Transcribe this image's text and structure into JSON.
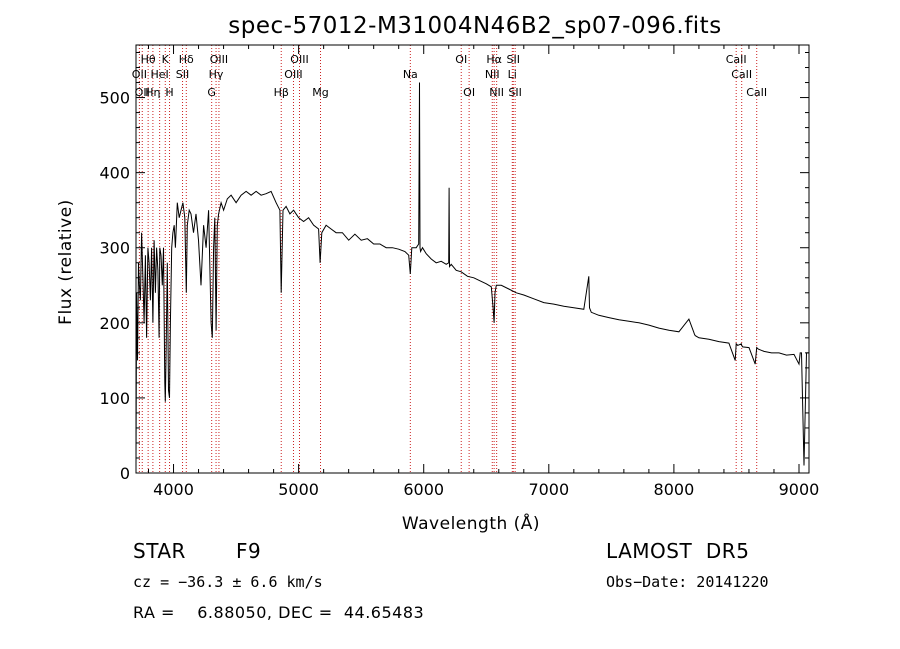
{
  "chart_data": {
    "type": "line",
    "title": "spec-57012-M31004N46B2_sp07-096.fits",
    "xlabel": "Wavelength (Å)",
    "ylabel": "Flux (relative)",
    "xlim": [
      3700,
      9080
    ],
    "ylim": [
      0,
      570
    ],
    "xticks": [
      4000,
      5000,
      6000,
      7000,
      8000,
      9000
    ],
    "yticks": [
      0,
      100,
      200,
      300,
      400,
      500
    ],
    "xtick_labels": [
      "4000",
      "5000",
      "6000",
      "7000",
      "8000",
      "9000"
    ],
    "ytick_labels": [
      "0",
      "100",
      "200",
      "300",
      "400",
      "500"
    ],
    "grid": false,
    "line_color": "#000000",
    "marker_color": "#cc2222",
    "series": [
      {
        "x": [
          3700,
          3705,
          3712,
          3720,
          3727,
          3735,
          3745,
          3755,
          3765,
          3775,
          3785,
          3795,
          3805,
          3815,
          3825,
          3835,
          3845,
          3855,
          3865,
          3875,
          3885,
          3890,
          3900,
          3910,
          3920,
          3930,
          3934,
          3940,
          3950,
          3960,
          3968,
          3975,
          3985,
          3995,
          4005,
          4015,
          4030,
          4045,
          4060,
          4075,
          4090,
          4102,
          4110,
          4125,
          4140,
          4160,
          4180,
          4200,
          4220,
          4240,
          4260,
          4280,
          4300,
          4310,
          4320,
          4330,
          4340,
          4350,
          4360,
          4380,
          4400,
          4430,
          4460,
          4500,
          4540,
          4580,
          4620,
          4660,
          4700,
          4740,
          4780,
          4820,
          4850,
          4861,
          4875,
          4900,
          4930,
          4960,
          5000,
          5040,
          5080,
          5120,
          5160,
          5172,
          5185,
          5220,
          5260,
          5300,
          5350,
          5400,
          5450,
          5500,
          5550,
          5600,
          5650,
          5700,
          5750,
          5800,
          5850,
          5880,
          5893,
          5905,
          5940,
          5960,
          5966,
          5970,
          5975,
          5990,
          6020,
          6060,
          6100,
          6140,
          6180,
          6200,
          6203,
          6206,
          6220,
          6260,
          6300,
          6350,
          6400,
          6450,
          6500,
          6540,
          6555,
          6563,
          6570,
          6580,
          6620,
          6680,
          6740,
          6800,
          6880,
          6960,
          7040,
          7120,
          7200,
          7280,
          7320,
          7325,
          7330,
          7340,
          7400,
          7480,
          7560,
          7640,
          7720,
          7800,
          7880,
          7960,
          8040,
          8120,
          8160,
          8164,
          8170,
          8200,
          8280,
          8360,
          8440,
          8490,
          8498,
          8510,
          8540,
          8542,
          8550,
          8600,
          8650,
          8662,
          8675,
          8720,
          8780,
          8840,
          8900,
          8960,
          9000,
          9010,
          9020,
          9040,
          9060,
          9070,
          9080
        ],
        "y": [
          10,
          240,
          150,
          280,
          250,
          230,
          320,
          260,
          200,
          290,
          180,
          300,
          280,
          230,
          300,
          200,
          310,
          240,
          300,
          270,
          180,
          300,
          290,
          250,
          300,
          120,
          95,
          150,
          280,
          110,
          100,
          200,
          300,
          320,
          330,
          300,
          360,
          340,
          350,
          360,
          340,
          240,
          330,
          350,
          345,
          320,
          345,
          310,
          250,
          330,
          300,
          350,
          200,
          180,
          300,
          340,
          190,
          330,
          345,
          360,
          350,
          365,
          370,
          360,
          370,
          375,
          370,
          375,
          370,
          372,
          375,
          360,
          350,
          240,
          350,
          355,
          345,
          350,
          340,
          335,
          340,
          330,
          325,
          280,
          320,
          330,
          325,
          320,
          320,
          310,
          318,
          310,
          312,
          305,
          305,
          300,
          300,
          298,
          295,
          290,
          265,
          300,
          300,
          305,
          520,
          300,
          295,
          300,
          292,
          285,
          280,
          282,
          278,
          280,
          380,
          275,
          278,
          270,
          268,
          262,
          260,
          256,
          252,
          248,
          220,
          200,
          240,
          250,
          250,
          245,
          240,
          237,
          232,
          227,
          225,
          222,
          220,
          218,
          262,
          220,
          218,
          214,
          210,
          207,
          204,
          202,
          200,
          197,
          193,
          190,
          188,
          205,
          187,
          185,
          183,
          180,
          178,
          175,
          173,
          150,
          172,
          170,
          172,
          170,
          168,
          167,
          145,
          167,
          165,
          162,
          160,
          160,
          157,
          158,
          145,
          160,
          160,
          10,
          160,
          160,
          160
        ]
      }
    ],
    "lines": [
      {
        "x": 3727,
        "label": "OII",
        "row": 2
      },
      {
        "x": 3750,
        "label": "OII",
        "row": 3
      },
      {
        "x": 3797,
        "label": "Hθ",
        "row": 1
      },
      {
        "x": 3835,
        "label": "Hη",
        "row": 3
      },
      {
        "x": 3889,
        "label": "HeI",
        "row": 2
      },
      {
        "x": 3934,
        "label": "K",
        "row": 1
      },
      {
        "x": 3968,
        "label": "H",
        "row": 3
      },
      {
        "x": 4072,
        "label": "SII",
        "row": 2
      },
      {
        "x": 4102,
        "label": "Hδ",
        "row": 1
      },
      {
        "x": 4305,
        "label": "G",
        "row": 3
      },
      {
        "x": 4340,
        "label": "Hγ",
        "row": 2
      },
      {
        "x": 4363,
        "label": "OIII",
        "row": 1
      },
      {
        "x": 4861,
        "label": "Hβ",
        "row": 3
      },
      {
        "x": 4959,
        "label": "OIII",
        "row": 2
      },
      {
        "x": 5007,
        "label": "OIII",
        "row": 1
      },
      {
        "x": 5175,
        "label": "Mg",
        "row": 3
      },
      {
        "x": 5893,
        "label": "Na",
        "row": 2
      },
      {
        "x": 6300,
        "label": "OI",
        "row": 1
      },
      {
        "x": 6363,
        "label": "OI",
        "row": 3
      },
      {
        "x": 6548,
        "label": "NII",
        "row": 2
      },
      {
        "x": 6563,
        "label": "Hα",
        "row": 1
      },
      {
        "x": 6583,
        "label": "NII",
        "row": 3
      },
      {
        "x": 6708,
        "label": "Li",
        "row": 2
      },
      {
        "x": 6716,
        "label": "SII",
        "row": 1
      },
      {
        "x": 6731,
        "label": "SII",
        "row": 3
      },
      {
        "x": 8498,
        "label": "CaII",
        "row": 1
      },
      {
        "x": 8542,
        "label": "CaII",
        "row": 2
      },
      {
        "x": 8662,
        "label": "CaII",
        "row": 3
      }
    ]
  },
  "info": {
    "object_class": "STAR",
    "subclass": "F9",
    "survey": "LAMOST  DR5",
    "cz": "cz = −36.3 ± 6.6 km/s",
    "obs_date": "Obs−Date: 20141220",
    "coords": "RA =    6.88050, DEC =  44.65483"
  }
}
